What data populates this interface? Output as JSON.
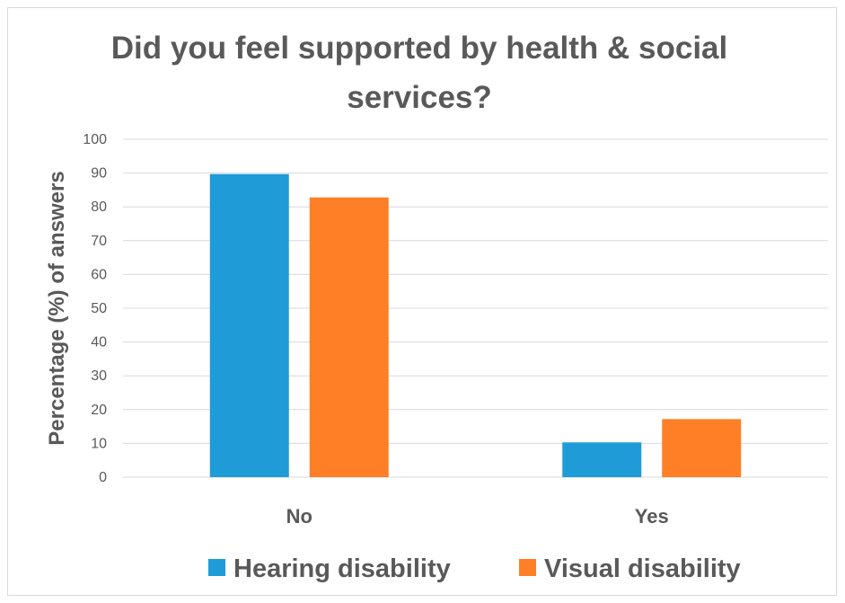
{
  "chart_data": {
    "type": "bar",
    "title_lines": [
      "Did you feel supported by health & social",
      "services?"
    ],
    "ylabel": "Percentage (%) of answers",
    "xlabel": "",
    "categories": [
      "No",
      "Yes"
    ],
    "ylim": [
      0,
      100
    ],
    "yticks": [
      0,
      10,
      20,
      30,
      40,
      50,
      60,
      70,
      80,
      90,
      100
    ],
    "grid": true,
    "legend_position": "bottom",
    "series": [
      {
        "name": "Hearing disability",
        "values": [
          89.7,
          10.3
        ],
        "color": "#1f9bd7"
      },
      {
        "name": "Visual disability",
        "values": [
          82.8,
          17.2
        ],
        "color": "#ff7f27"
      }
    ]
  }
}
